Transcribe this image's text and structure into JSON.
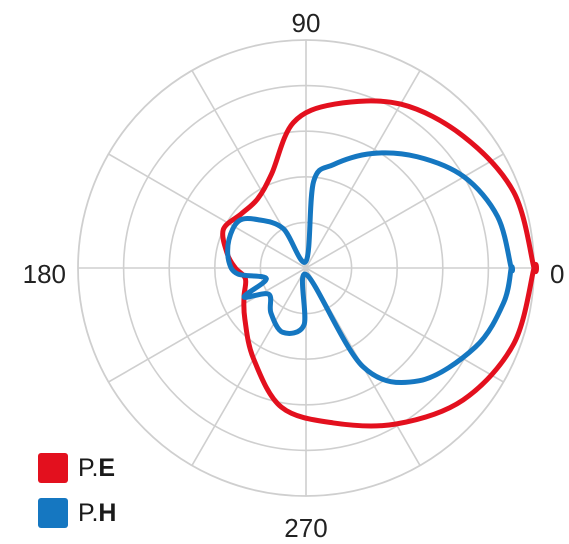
{
  "chart_data": {
    "type": "polar-line",
    "title": "",
    "angle_labels": [
      {
        "angle": 90,
        "text": "90"
      },
      {
        "angle": 180,
        "text": "180"
      },
      {
        "angle": 270,
        "text": "270"
      },
      {
        "angle": 0,
        "text": "0"
      }
    ],
    "radial_rings": 5,
    "radial_max": 1.0,
    "spoke_step_deg": 30,
    "grid": true,
    "legend_placement": "bottom-left",
    "series": [
      {
        "name_prefix": "P.",
        "name_suffix": "E",
        "color": "#e3101e",
        "points": [
          [
            0,
            1.0
          ],
          [
            20,
            0.97
          ],
          [
            40,
            0.9
          ],
          [
            60,
            0.83
          ],
          [
            80,
            0.73
          ],
          [
            95,
            0.64
          ],
          [
            110,
            0.44
          ],
          [
            125,
            0.37
          ],
          [
            140,
            0.37
          ],
          [
            155,
            0.4
          ],
          [
            170,
            0.35
          ],
          [
            180,
            0.31
          ],
          [
            190,
            0.27
          ],
          [
            205,
            0.3
          ],
          [
            220,
            0.35
          ],
          [
            240,
            0.46
          ],
          [
            260,
            0.62
          ],
          [
            280,
            0.69
          ],
          [
            300,
            0.79
          ],
          [
            320,
            0.9
          ],
          [
            340,
            0.97
          ],
          [
            360,
            1.0
          ]
        ]
      },
      {
        "name_prefix": "P.",
        "name_suffix": "H",
        "color": "#1577c1",
        "points": [
          [
            0,
            0.9
          ],
          [
            15,
            0.87
          ],
          [
            30,
            0.8
          ],
          [
            45,
            0.69
          ],
          [
            60,
            0.58
          ],
          [
            75,
            0.47
          ],
          [
            85,
            0.38
          ],
          [
            90,
            0.03
          ],
          [
            120,
            0.2
          ],
          [
            135,
            0.3
          ],
          [
            145,
            0.36
          ],
          [
            160,
            0.36
          ],
          [
            175,
            0.34
          ],
          [
            185,
            0.3
          ],
          [
            195,
            0.18
          ],
          [
            205,
            0.3
          ],
          [
            215,
            0.2
          ],
          [
            232,
            0.25
          ],
          [
            250,
            0.3
          ],
          [
            268,
            0.25
          ],
          [
            275,
            0.03
          ],
          [
            300,
            0.5
          ],
          [
            315,
            0.7
          ],
          [
            335,
            0.82
          ],
          [
            350,
            0.88
          ],
          [
            360,
            0.9
          ]
        ]
      }
    ]
  }
}
